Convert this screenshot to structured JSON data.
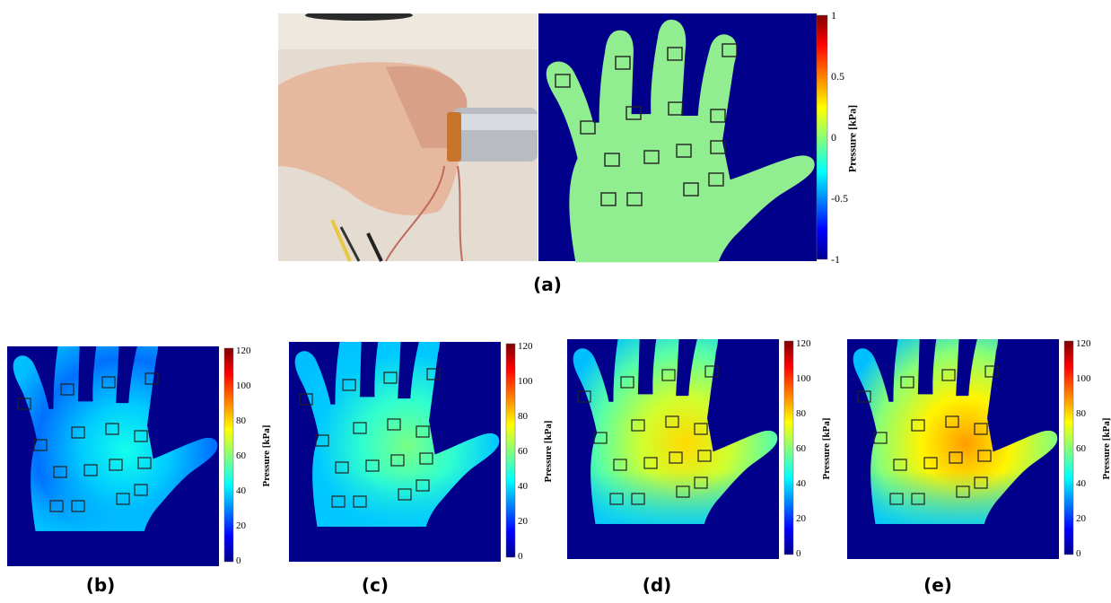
{
  "panel_a": {
    "caption": "(a)",
    "colorbar": {
      "ticks": [
        "1",
        "0.5",
        "0",
        "-0.5",
        "-1"
      ],
      "label": "Pressure [kPa]"
    }
  },
  "panels_pressure": [
    {
      "caption": "(b)",
      "intensity": 0.45
    },
    {
      "caption": "(c)",
      "intensity": 0.62
    },
    {
      "caption": "(d)",
      "intensity": 0.9
    },
    {
      "caption": "(e)",
      "intensity": 1.0
    }
  ],
  "colorbar_pressure": {
    "ticks": [
      "120",
      "100",
      "80",
      "60",
      "40",
      "20",
      "0"
    ],
    "label": "Pressure [kPa]"
  },
  "colors": {
    "background_blue": "#00008b",
    "hand_green": "#90ee90"
  }
}
